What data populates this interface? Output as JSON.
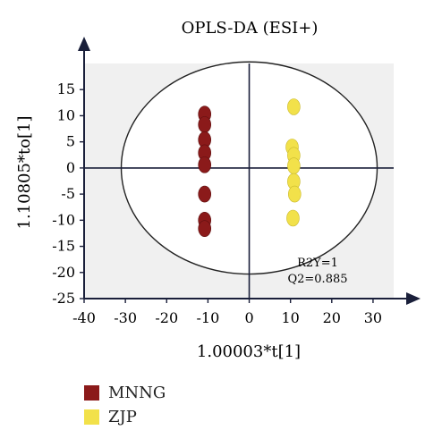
{
  "chart_data": {
    "type": "scatter",
    "title": "OPLS-DA (ESI+)",
    "xlabel": "1.00003*t[1]",
    "ylabel": "1.10805*to[1]",
    "xlim": [
      -40,
      35
    ],
    "ylim": [
      -25,
      20
    ],
    "x_ticks": [
      -40,
      -30,
      -20,
      -10,
      0,
      10,
      20,
      30
    ],
    "y_ticks": [
      -25,
      -20,
      -15,
      -10,
      -5,
      0,
      5,
      10,
      15
    ],
    "grid": false,
    "annotations": [
      "R2Y=1",
      "Q2=0.885"
    ],
    "ellipse": {
      "center": [
        0,
        0
      ],
      "radius_x": 31,
      "radius_y": 20.3
    },
    "legend_position": "bottom-left",
    "series": [
      {
        "name": "MNNG",
        "color": "#8b1a1a",
        "points": [
          [
            -10.8,
            10.3
          ],
          [
            -10.8,
            8.3
          ],
          [
            -10.8,
            5.4
          ],
          [
            -10.8,
            2.9
          ],
          [
            -10.8,
            0.6
          ],
          [
            -10.8,
            -5.0
          ],
          [
            -10.8,
            -10.0
          ],
          [
            -10.8,
            -11.6
          ]
        ]
      },
      {
        "name": "ZJP",
        "color": "#f2e14a",
        "points": [
          [
            10.8,
            11.7
          ],
          [
            10.4,
            4.0
          ],
          [
            10.8,
            2.4
          ],
          [
            10.8,
            0.4
          ],
          [
            10.8,
            -2.6
          ],
          [
            11.0,
            -5.0
          ],
          [
            10.6,
            -9.6
          ]
        ]
      }
    ]
  }
}
